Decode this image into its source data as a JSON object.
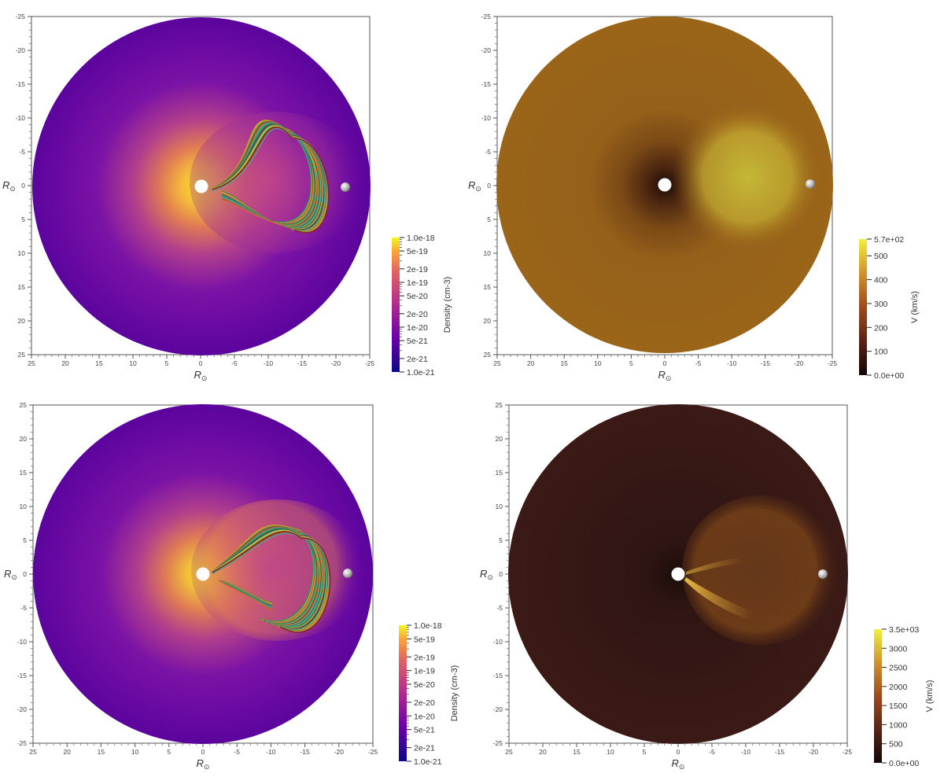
{
  "chart_data": [
    {
      "type": "heatmap",
      "panel": "top-left",
      "quantity": "density",
      "colormap": "plasma",
      "x_ticks": [
        25,
        20,
        15,
        10,
        5,
        0,
        -5,
        -10,
        -15,
        -20,
        -25
      ],
      "y_ticks": [
        -25,
        -20,
        -15,
        -10,
        -5,
        0,
        5,
        10,
        15,
        20,
        25
      ],
      "xlim": [
        25,
        -25
      ],
      "ylim": [
        -25,
        25
      ],
      "xlabel": "R",
      "ylabel": "R",
      "axis_subscript": "⊙",
      "colorbar": {
        "label": "Density (cm-3)",
        "scale": "log",
        "range": [
          1e-21,
          1e-18
        ],
        "tick_labels": [
          "1.0e-18",
          "5e-19",
          "2e-19",
          "1e-19",
          "5e-20",
          "2e-20",
          "1e-20",
          "5e-21",
          "2e-21",
          "1.0e-21"
        ],
        "tick_values": [
          1e-18,
          5e-19,
          2e-19,
          1e-19,
          5e-20,
          2e-20,
          1e-20,
          5e-21,
          2e-21,
          1e-21
        ]
      },
      "flux_rope": true
    },
    {
      "type": "heatmap",
      "panel": "top-right",
      "quantity": "velocity",
      "colormap": "copper-yellow",
      "x_ticks": [
        25,
        20,
        15,
        10,
        5,
        0,
        -5,
        -10,
        -15,
        -20,
        -25
      ],
      "y_ticks": [
        -25,
        -20,
        -15,
        -10,
        -5,
        0,
        5,
        10,
        15,
        20,
        25
      ],
      "xlim": [
        25,
        -25
      ],
      "ylim": [
        -25,
        25
      ],
      "xlabel": "R",
      "ylabel": "R",
      "axis_subscript": "⊙",
      "colorbar": {
        "label": "V (km/s)",
        "scale": "linear",
        "range": [
          0,
          570
        ],
        "tick_labels": [
          "5.7e+02",
          "500",
          "400",
          "300",
          "200",
          "100",
          "0.0e+00"
        ],
        "tick_values": [
          570,
          500,
          400,
          300,
          200,
          100,
          0
        ]
      },
      "flux_rope": false
    },
    {
      "type": "heatmap",
      "panel": "bottom-left",
      "quantity": "density",
      "colormap": "plasma",
      "x_ticks": [
        25,
        20,
        15,
        10,
        5,
        0,
        -5,
        -10,
        -15,
        -20,
        -25
      ],
      "y_ticks": [
        25,
        20,
        15,
        10,
        5,
        0,
        -5,
        -10,
        -15,
        -20,
        -25
      ],
      "xlim": [
        25,
        -25
      ],
      "ylim": [
        25,
        -25
      ],
      "xlabel": "R",
      "ylabel": "R",
      "axis_subscript": "⊙",
      "colorbar": {
        "label": "Density (cm-3)",
        "scale": "log",
        "range": [
          1e-21,
          1e-18
        ],
        "tick_labels": [
          "1.0e-18",
          "5e-19",
          "2e-19",
          "1e-19",
          "5e-20",
          "2e-20",
          "1e-20",
          "5e-21",
          "2e-21",
          "1.0e-21"
        ],
        "tick_values": [
          1e-18,
          5e-19,
          2e-19,
          1e-19,
          5e-20,
          2e-20,
          1e-20,
          5e-21,
          2e-21,
          1e-21
        ]
      },
      "flux_rope": true
    },
    {
      "type": "heatmap",
      "panel": "bottom-right",
      "quantity": "velocity",
      "colormap": "copper-yellow",
      "x_ticks": [
        25,
        20,
        15,
        10,
        5,
        0,
        -5,
        -10,
        -15,
        -20,
        -25
      ],
      "y_ticks": [
        25,
        20,
        15,
        10,
        5,
        0,
        -5,
        -10,
        -15,
        -20,
        -25
      ],
      "xlim": [
        25,
        -25
      ],
      "ylim": [
        25,
        -25
      ],
      "xlabel": "R",
      "ylabel": "R",
      "axis_subscript": "⊙",
      "colorbar": {
        "label": "V (km/s)",
        "scale": "linear",
        "range": [
          0,
          3500
        ],
        "tick_labels": [
          "3.5e+03",
          "3000",
          "2500",
          "2000",
          "1500",
          "1000",
          "500",
          "0.0e+00"
        ],
        "tick_values": [
          3500,
          3000,
          2500,
          2000,
          1500,
          1000,
          500,
          0
        ]
      },
      "flux_rope": false
    }
  ]
}
